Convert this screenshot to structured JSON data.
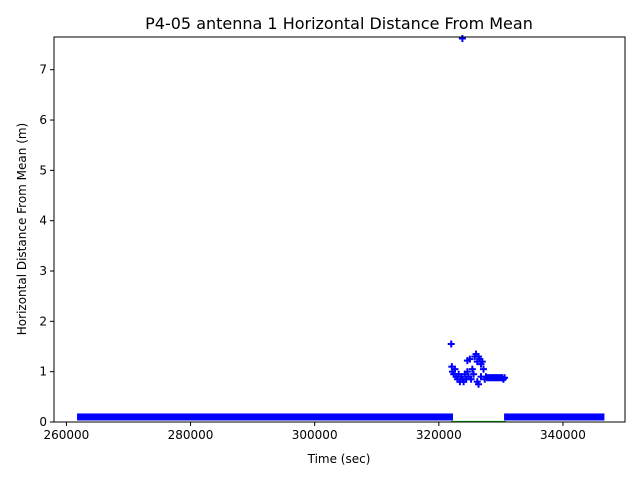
{
  "chart_data": {
    "type": "scatter",
    "title": "P4-05 antenna 1 Horizontal Distance From Mean",
    "xlabel": "Time (sec)",
    "ylabel": "Horizontal Distance From Mean (m)",
    "xlim": [
      258000,
      350000
    ],
    "ylim": [
      0,
      7.65
    ],
    "xticks": [
      260000,
      280000,
      300000,
      320000,
      340000
    ],
    "xtick_labels": [
      "260000",
      "280000",
      "300000",
      "320000",
      "340000"
    ],
    "yticks": [
      0,
      1,
      2,
      3,
      4,
      5,
      6,
      7
    ],
    "ytick_labels": [
      "0",
      "1",
      "2",
      "3",
      "4",
      "5",
      "6",
      "7"
    ],
    "grid": false,
    "series": [
      {
        "marker": "+",
        "color": "#0000ff",
        "segments": [
          {
            "x_start": 262200,
            "x_end": 321800,
            "y": 0.1
          },
          {
            "x_start": 331000,
            "x_end": 346200,
            "y": 0.1
          }
        ],
        "points": [
          [
            322000,
            1.55
          ],
          [
            323800,
            7.62
          ],
          [
            322100,
            1.1
          ],
          [
            322200,
            1.0
          ],
          [
            322400,
            0.95
          ],
          [
            322600,
            1.05
          ],
          [
            322800,
            0.9
          ],
          [
            323000,
            0.85
          ],
          [
            323200,
            0.95
          ],
          [
            323400,
            0.8
          ],
          [
            323600,
            0.9
          ],
          [
            323800,
            0.85
          ],
          [
            324000,
            0.8
          ],
          [
            324200,
            0.95
          ],
          [
            324400,
            0.85
          ],
          [
            324600,
            1.0
          ],
          [
            324800,
            0.9
          ],
          [
            324600,
            1.22
          ],
          [
            325000,
            1.25
          ],
          [
            325200,
            0.85
          ],
          [
            325400,
            1.05
          ],
          [
            325600,
            0.95
          ],
          [
            325800,
            1.3
          ],
          [
            326000,
            1.35
          ],
          [
            326200,
            1.2
          ],
          [
            326400,
            1.3
          ],
          [
            326600,
            1.25
          ],
          [
            326800,
            1.15
          ],
          [
            327000,
            1.2
          ],
          [
            326200,
            0.8
          ],
          [
            326400,
            0.75
          ],
          [
            326800,
            0.9
          ],
          [
            327200,
            1.05
          ],
          [
            327400,
            0.85
          ],
          [
            327600,
            0.9
          ],
          [
            327800,
            0.88
          ],
          [
            328000,
            0.88
          ],
          [
            328200,
            0.88
          ],
          [
            328400,
            0.88
          ],
          [
            328600,
            0.88
          ],
          [
            328800,
            0.88
          ],
          [
            329000,
            0.88
          ],
          [
            329200,
            0.88
          ],
          [
            329400,
            0.88
          ],
          [
            329600,
            0.88
          ],
          [
            329800,
            0.88
          ],
          [
            330000,
            0.88
          ],
          [
            330200,
            0.88
          ],
          [
            330400,
            0.85
          ],
          [
            330600,
            0.88
          ]
        ]
      },
      {
        "marker": "line",
        "color": "#00c000",
        "segments": [
          {
            "x_start": 322000,
            "x_end": 330800,
            "y": 0.0
          }
        ]
      }
    ]
  }
}
